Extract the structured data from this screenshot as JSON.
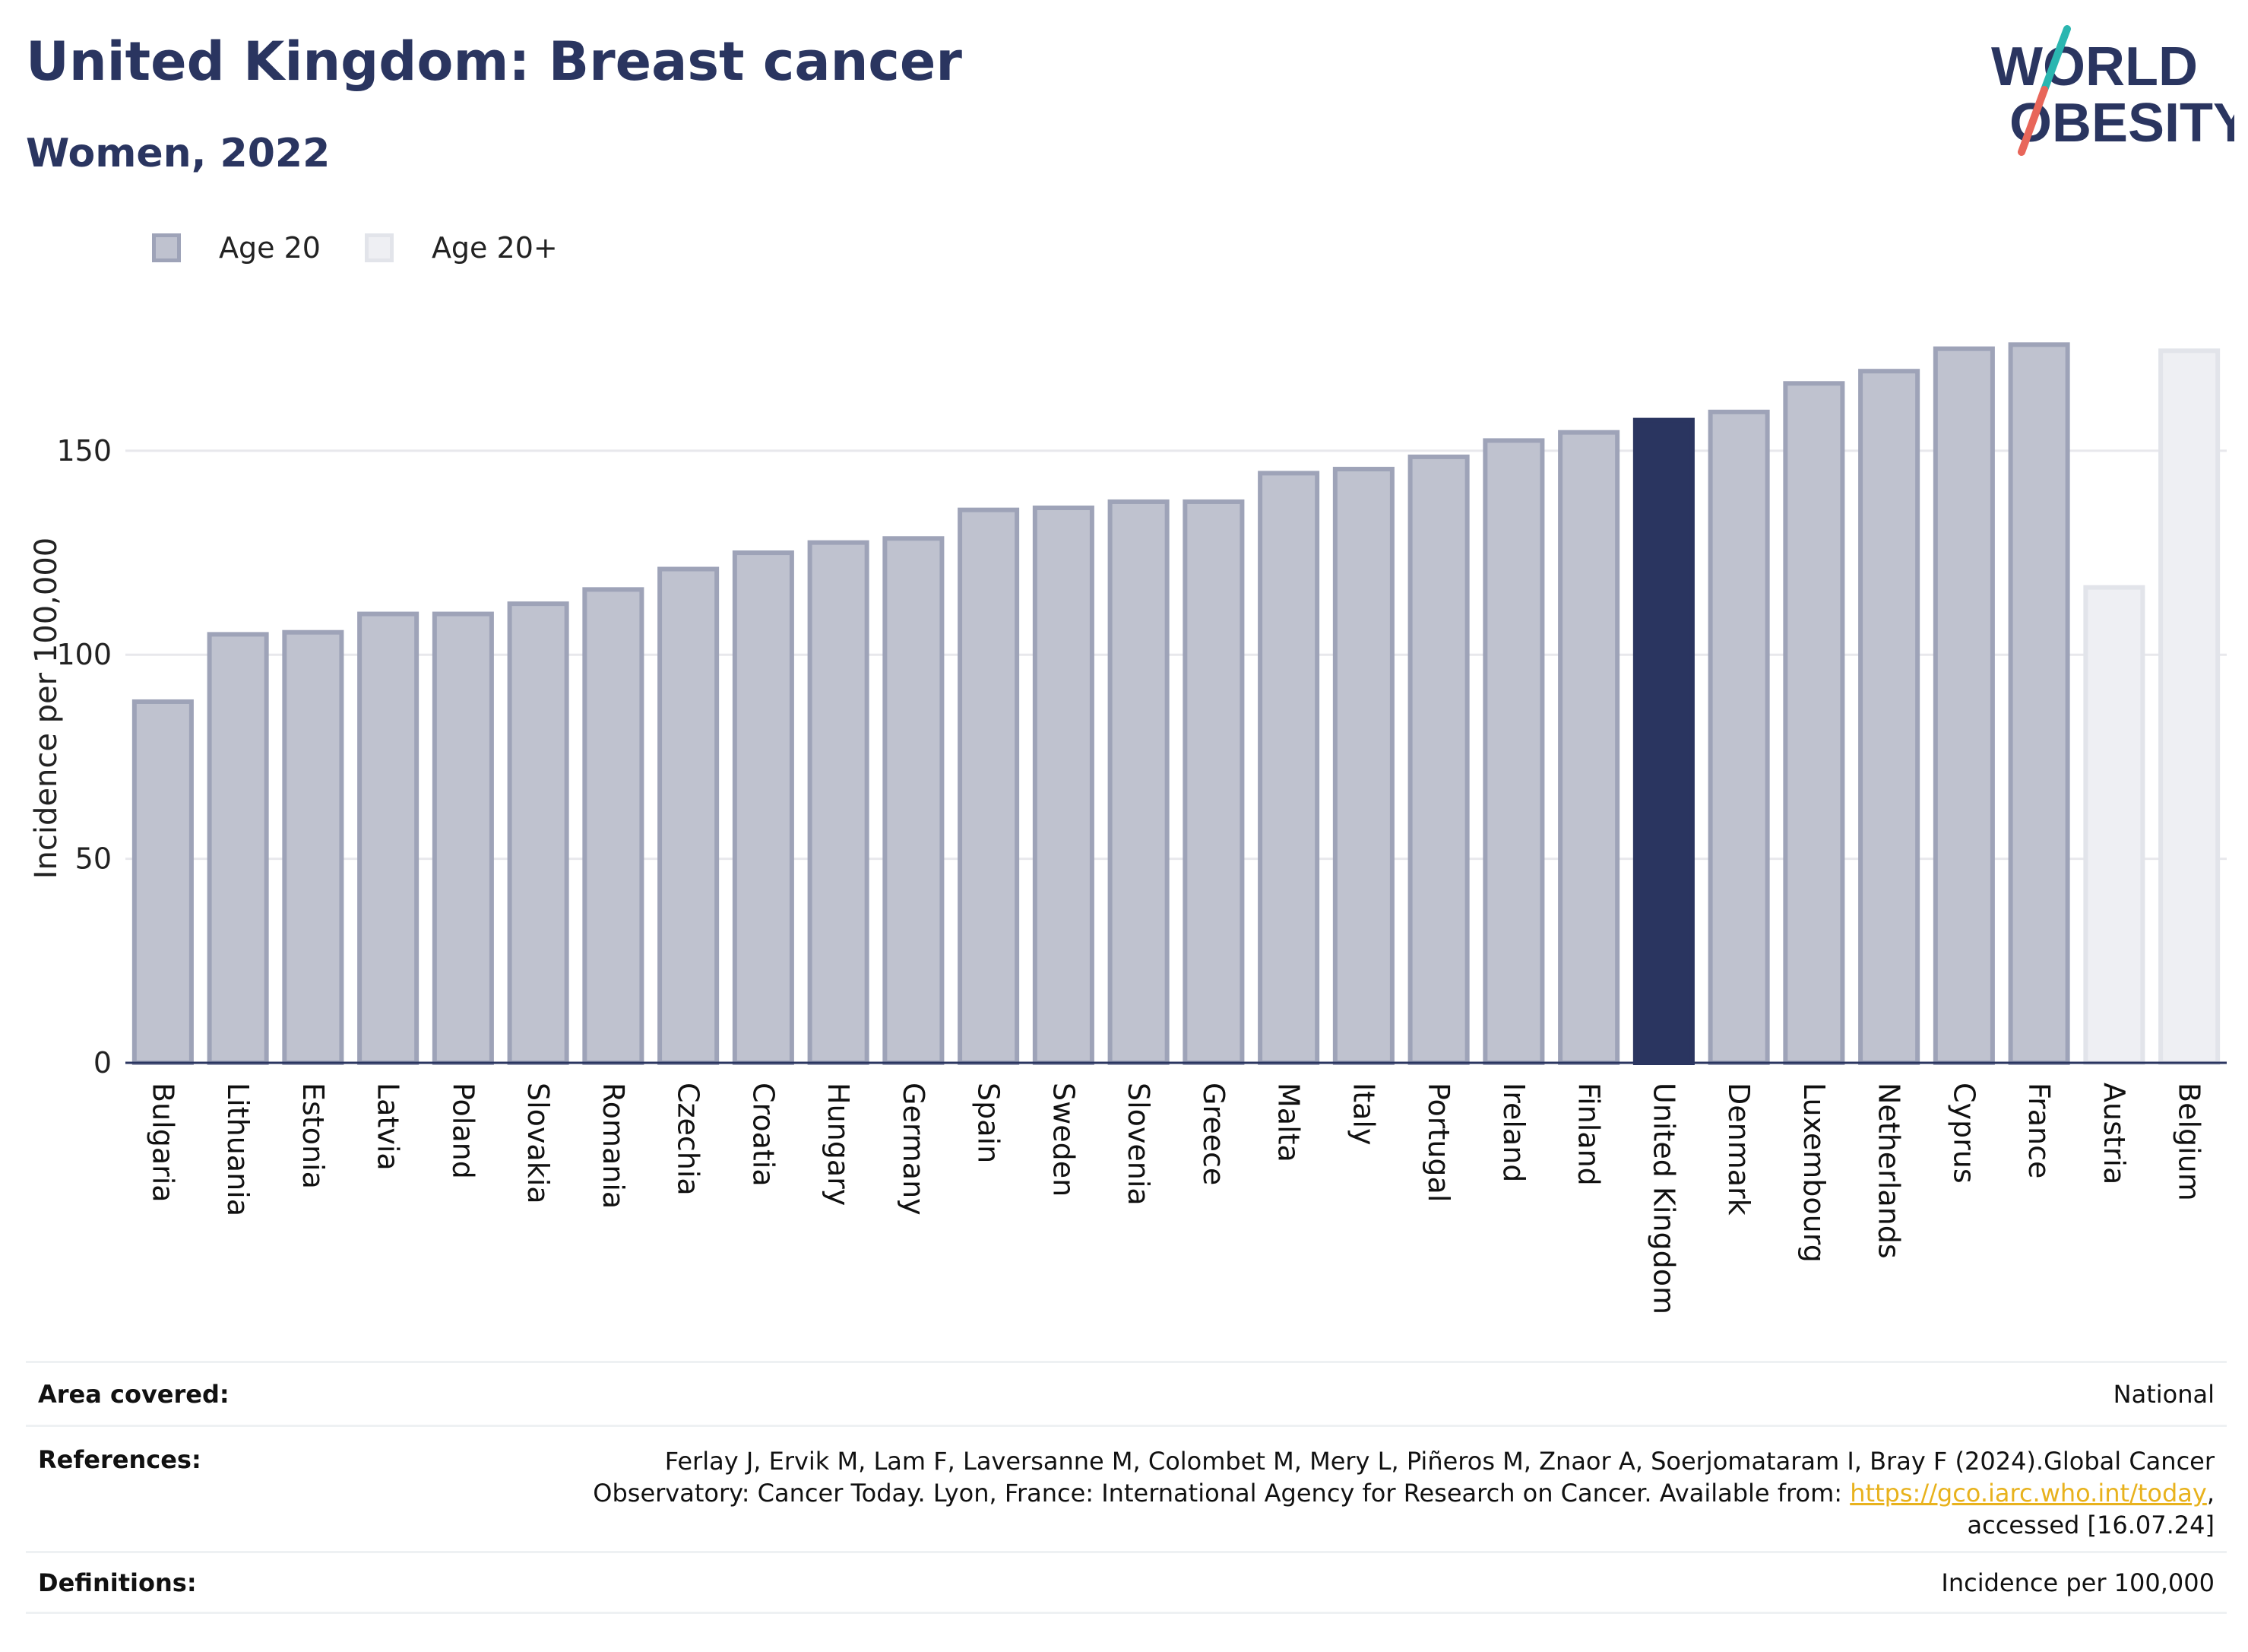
{
  "header": {
    "title": "United Kingdom: Breast cancer",
    "subtitle": "Women, 2022"
  },
  "logo": {
    "line1": "WORLD",
    "line2": "OBESITY",
    "colors": {
      "text": "#2a3560",
      "slash_teal": "#2bb6b0",
      "slash_coral": "#e8665a"
    }
  },
  "legend": [
    {
      "label": "Age 20",
      "color": "#bfc2cf",
      "border": "#9ea3b8"
    },
    {
      "label": "Age 20+",
      "color": "#eeeff3",
      "border": "#e2e4ea"
    }
  ],
  "chart_data": {
    "type": "bar",
    "ylabel": "Incidence per 100,000",
    "ylim": [
      0,
      185
    ],
    "yticks": [
      0,
      50,
      100,
      150
    ],
    "grid": true,
    "categories": [
      "Bulgaria",
      "Lithuania",
      "Estonia",
      "Latvia",
      "Poland",
      "Slovakia",
      "Romania",
      "Czechia",
      "Croatia",
      "Hungary",
      "Germany",
      "Spain",
      "Sweden",
      "Slovenia",
      "Greece",
      "Malta",
      "Italy",
      "Portugal",
      "Ireland",
      "Finland",
      "United Kingdom",
      "Denmark",
      "Luxembourg",
      "Netherlands",
      "Cyprus",
      "France",
      "Austria",
      "Belgium"
    ],
    "values": [
      88.5,
      105,
      105.5,
      110,
      110,
      112.5,
      116,
      121,
      125,
      127.5,
      128.5,
      135.5,
      136,
      137.5,
      137.5,
      144.5,
      145.5,
      148.5,
      152.5,
      154.5,
      157.5,
      159.5,
      166.5,
      169.5,
      175,
      176,
      116.5,
      174.5
    ],
    "groups": [
      "Age 20",
      "Age 20",
      "Age 20",
      "Age 20",
      "Age 20",
      "Age 20",
      "Age 20",
      "Age 20",
      "Age 20",
      "Age 20",
      "Age 20",
      "Age 20",
      "Age 20",
      "Age 20",
      "Age 20",
      "Age 20",
      "Age 20",
      "Age 20",
      "Age 20",
      "Age 20",
      "Age 20",
      "Age 20",
      "Age 20",
      "Age 20",
      "Age 20",
      "Age 20",
      "Age 20+",
      "Age 20+"
    ],
    "highlight": "United Kingdom",
    "colors": {
      "age20_fill": "#bfc2cf",
      "age20_border": "#9ea3b8",
      "age20plus_fill": "#eeeff3",
      "age20plus_border": "#e2e4ea",
      "highlight": "#2a3560",
      "grid": "#e8e8ec",
      "axis": "#2a3560"
    }
  },
  "footer": {
    "area_label": "Area covered:",
    "area_value": "National",
    "references_label": "References:",
    "references_line1": "Ferlay J, Ervik M, Lam F, Laversanne M, Colombet M, Mery L, Piñeros M, Znaor A, Soerjomataram I, Bray F (2024).Global Cancer",
    "references_line2_pre": "Observatory: Cancer Today. Lyon, France: International Agency for Research on Cancer. Available from: ",
    "references_link": "https://gco.iarc.who.int/today",
    "references_line2_post": ",",
    "references_line3": "accessed [16.07.24]",
    "definitions_label": "Definitions:",
    "definitions_value": "Incidence per 100,000"
  }
}
